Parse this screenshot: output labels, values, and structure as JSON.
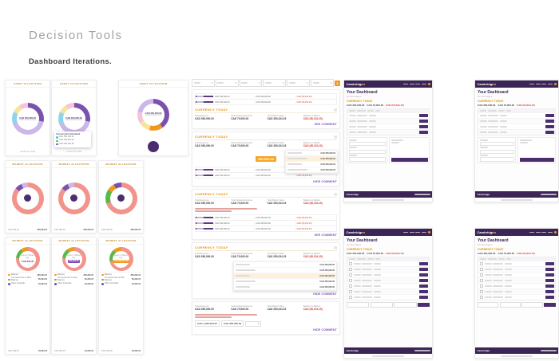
{
  "page": {
    "title": "Decision Tools",
    "subtitle": "Dashboard Iterations."
  },
  "colors": {
    "brand_purple": "#3b2557",
    "accent_purple": "#7c4dbe",
    "accent_orange": "#ef9a1d",
    "negative_red": "#cf3b2f",
    "ring_pink": "#f2948c",
    "ring_lavender": "#cbb7e8",
    "ring_purple": "#7b52ab",
    "segment_blue": "#8fd4ee",
    "segment_yellow": "#f6e49b",
    "segment_pink": "#f7c3d8",
    "segment_green": "#58b947"
  },
  "donut_cards": [
    {
      "pos": "r1c1",
      "header": "ASSET ALLOCATION",
      "type": "value",
      "center_value": "CAD 350,000.00",
      "center_label": "Credit Amount Used",
      "footer_label": "Credit Limit Total",
      "segments": [
        [
          "#7b52ab",
          28
        ],
        [
          "#cbb7e8",
          42
        ],
        [
          "#8fd4ee",
          12
        ],
        [
          "#f6e49b",
          9
        ],
        [
          "#f7c3d8",
          9
        ]
      ]
    },
    {
      "pos": "r1c2",
      "header": "ASSET ALLOCATION",
      "type": "value",
      "center_value": "CAD 350,000.00",
      "center_label": "Credit Amount Used",
      "footer_label": "Credit Limit Total",
      "segments": [
        [
          "#7b52ab",
          28
        ],
        [
          "#cbb7e8",
          42
        ],
        [
          "#8fd4ee",
          12
        ],
        [
          "#f6e49b",
          9
        ],
        [
          "#f7c3d8",
          9
        ]
      ],
      "tooltip": {
        "title": "Currency Not Scheduled",
        "rows": [
          {
            "color": "#49c5e8",
            "label": "CAD 350,000.00"
          },
          {
            "color": "#58b947",
            "label": "CAD 350,000.00"
          },
          {
            "color": "#7b52ab",
            "label": "CAD 350,000.00"
          }
        ]
      }
    },
    {
      "pos": "r1c3",
      "header": "ASSET ALLOCATION",
      "type": "value",
      "center_value": "CAD 350,000.00",
      "center_label": "Credit Amount Used",
      "big_dot": true,
      "segments": [
        [
          "#7b52ab",
          40
        ],
        [
          "#ef9a1d",
          14
        ],
        [
          "#f6e49b",
          12
        ],
        [
          "#f7c3d8",
          12
        ],
        [
          "#cbb7e8",
          22
        ]
      ]
    },
    {
      "pos": "r2c1",
      "header": "MARKET ALLOCATION",
      "type": "dot",
      "footer_left": "CAD 350,00",
      "footer_right": "350,234.15",
      "segments": [
        [
          "#f2948c",
          86
        ],
        [
          "#7b52ab",
          7
        ],
        [
          "#cbb7e8",
          7
        ]
      ]
    },
    {
      "pos": "r2c2",
      "header": "MARKET ALLOCATION",
      "type": "dot",
      "footer_left": "CAD 350,00",
      "footer_right": "350,234.15",
      "segments": [
        [
          "#f2948c",
          86
        ],
        [
          "#7b52ab",
          7
        ],
        [
          "#cbb7e8",
          7
        ]
      ]
    },
    {
      "pos": "r2c3",
      "header": "MARKET ALLOCATION",
      "type": "dot",
      "footer_left": "CAD 350,00",
      "footer_right": "350,234.15",
      "segments": [
        [
          "#f2948c",
          70
        ],
        [
          "#58b947",
          14
        ],
        [
          "#ef9a1d",
          8
        ],
        [
          "#7b52ab",
          8
        ]
      ]
    },
    {
      "pos": "r3c1",
      "header": "MARKET ALLOCATION",
      "type": "chip",
      "center_label": "Return to Market beg.",
      "center_value": "CAD 350,00",
      "legend": [
        {
          "color": "#ef9a1d",
          "label": "Balance",
          "value": "350,234.15"
        },
        {
          "color": "#58b947",
          "label": "Converted due to Plan Balance",
          "value": "35,234.15"
        },
        {
          "color": "#7b52ab",
          "label": "Other Forwards",
          "value": "16,234.15"
        }
      ],
      "footer_left": "CAD 350,00",
      "footer_right": "16,234.15",
      "segments": [
        [
          "#f2948c",
          76
        ],
        [
          "#58b947",
          14
        ],
        [
          "#ef9a1d",
          10
        ]
      ]
    },
    {
      "pos": "r3c2",
      "header": "MARKET ALLOCATION",
      "type": "chip",
      "center_label": "Return to Market beg.",
      "chip": "350,000.00",
      "chip_color": "#7c4dbe",
      "legend": [
        {
          "color": "#ef9a1d",
          "label": "Balance",
          "value": "350,234.15"
        },
        {
          "color": "#58b947",
          "label": "Converted due to Plan Balance",
          "value": "35,234.15"
        },
        {
          "color": "#7b52ab",
          "label": "Other Forwards",
          "value": "16,234.15"
        }
      ],
      "footer_left": "CAD 350,00",
      "footer_right": "16,234.15",
      "segments": [
        [
          "#f2948c",
          76
        ],
        [
          "#58b947",
          14
        ],
        [
          "#ef9a1d",
          10
        ]
      ]
    },
    {
      "pos": "r3c3",
      "header": "MARKET ALLOCATION",
      "type": "chip",
      "center_label": "Return to Market beg.",
      "chip": "CAD 350,000.00",
      "chip_color": "#ef9a1d",
      "legend": [
        {
          "color": "#ef9a1d",
          "label": "Balance",
          "value": "350,234.15"
        },
        {
          "color": "#58b947",
          "label": "Converted due to Plan Balance",
          "value": "35,234.15"
        },
        {
          "color": "#7b52ab",
          "label": "Other Forwards",
          "value": "16,234.15"
        }
      ],
      "footer_left": "CAD 350,00",
      "footer_right": "16,234.15",
      "segments": [
        [
          "#f2948c",
          72
        ],
        [
          "#58b947",
          16
        ],
        [
          "#ef9a1d",
          12
        ]
      ]
    }
  ],
  "mid": {
    "filters": {
      "count": 6,
      "badge": "2"
    },
    "metrics": [
      {
        "label": "Total Exposure",
        "value": "CAD 350,000.00"
      },
      {
        "label": "Total Hedged Exposure",
        "value": "CAD 70,000.00"
      },
      {
        "label": "Total Market Value",
        "value": "CAD 350,234.15"
      },
      {
        "label": "Balance to Market",
        "value": "CAD (50,234.15)",
        "negative": true
      }
    ],
    "minitable_values": [
      "CAD 350,000.00",
      "CAD 350,000.00",
      "CAD (50,234.15)"
    ],
    "dropdown_value": "CAD 350,000.00",
    "panels": [
      {
        "minitable_top": 2,
        "header": "CURRENCY TODAY",
        "metrics": true,
        "link": "SEE COMMENT"
      },
      {
        "header": "CURRENCY TODAY",
        "metrics": true,
        "chip": "350,000.00",
        "dropdown": {
          "rows": 4,
          "overlay": true,
          "hl": 1
        },
        "minitable": 2,
        "link": "HIDE COMMENT"
      },
      {
        "header": "CURRENCY TODAY",
        "metrics": true,
        "note": true,
        "minitable": 3,
        "link": "SEE COMMENT"
      },
      {
        "header": "CURRENCY TODAY",
        "metrics": true,
        "dropdown": {
          "rows": 5,
          "overlay": false,
          "hl": 2
        },
        "link": "HIDE COMMENT"
      },
      {
        "metrics": true,
        "note": true,
        "cells": [
          "CAD 1,000,000.00",
          "CAD 350,000.00"
        ],
        "link": "HIDE COMMENT"
      }
    ]
  },
  "dashboards": [
    {
      "pos": "d1",
      "brand": "Cambridge",
      "heading": "Your Dashboard",
      "sub": "No Messages",
      "section": "CURRENCY TODAY",
      "summary": [
        "CAD 350,000.00",
        "CAD 70,000.00",
        "CAD (50,234.15)"
      ],
      "rows": 4,
      "form": true,
      "strip": false
    },
    {
      "pos": "d2",
      "brand": "Cambridge",
      "heading": "Your Dashboard",
      "sub": "No Messages",
      "section": "CURRENCY TODAY",
      "summary": [
        "CAD 350,000.00",
        "CAD 70,000.00",
        "CAD (50,234.15)"
      ],
      "rows": 4,
      "form": true,
      "strip": false
    },
    {
      "pos": "d3",
      "brand": "Cambridge",
      "heading": "Your Dashboard",
      "sub": "No Messages",
      "section": "CURRENCY TODAY",
      "summary": [
        "CAD 350,000.00",
        "CAD 70,000.00",
        "CAD (50,234.15)"
      ],
      "rows": 7,
      "form": false,
      "strip": true
    },
    {
      "pos": "d4",
      "brand": "Cambridge",
      "heading": "Your Dashboard",
      "sub": "No Messages",
      "section": "CURRENCY TODAY",
      "summary": [
        "CAD 350,000.00",
        "CAD 70,000.00",
        "CAD (50,234.15)"
      ],
      "rows": 7,
      "form": false,
      "strip": true
    }
  ]
}
